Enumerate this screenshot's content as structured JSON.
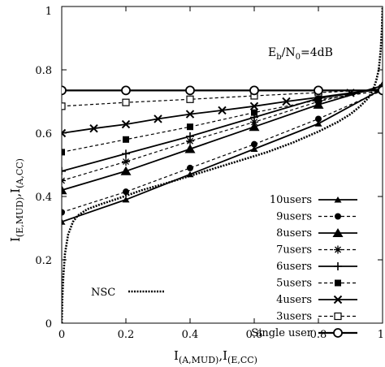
{
  "chart_data": {
    "type": "line",
    "annotation": "E_b/N_0=4dB",
    "annotation_parts": {
      "e": "E",
      "b": "b",
      "slash": "/N",
      "zero": "0",
      "tail": "=4dB"
    },
    "xlabel_parts": {
      "i1": "I",
      "s1": "(A,MUD)",
      "mid": ",I",
      "s2": "(E,CC)"
    },
    "ylabel_parts": {
      "i1": "I",
      "s1": "(E,MUD)",
      "mid": ",I",
      "s2": "(A,CC)"
    },
    "xlim": [
      0,
      1
    ],
    "ylim": [
      0,
      1
    ],
    "x_ticks": [
      0,
      0.2,
      0.4,
      0.6,
      0.8,
      1
    ],
    "x_tick_labels": [
      "0",
      "0.2",
      "0.4",
      "0.6",
      "0.8",
      "1"
    ],
    "y_ticks": [
      0,
      0.2,
      0.4,
      0.6,
      0.8,
      1
    ],
    "y_tick_labels": [
      "0",
      "0.2",
      "0.4",
      "0.6",
      "0.8",
      "1"
    ],
    "grid": false,
    "legend_position": "bottom-right",
    "series": [
      {
        "name": "10users",
        "style": "solid",
        "marker": "triangle-small",
        "x": [
          0,
          0.2,
          0.4,
          0.6,
          0.8,
          1
        ],
        "y": [
          0.32,
          0.39,
          0.47,
          0.55,
          0.63,
          0.74
        ]
      },
      {
        "name": "9users",
        "style": "dashed",
        "marker": "circle-filled",
        "x": [
          0,
          0.2,
          0.4,
          0.6,
          0.8,
          1
        ],
        "y": [
          0.35,
          0.415,
          0.49,
          0.565,
          0.645,
          0.735
        ]
      },
      {
        "name": "8users",
        "style": "solid",
        "marker": "triangle-large",
        "x": [
          0,
          0.2,
          0.4,
          0.6,
          0.8,
          1
        ],
        "y": [
          0.42,
          0.48,
          0.55,
          0.62,
          0.69,
          0.75
        ]
      },
      {
        "name": "7users",
        "style": "dashed",
        "marker": "star",
        "x": [
          0,
          0.2,
          0.4,
          0.6,
          0.8,
          1
        ],
        "y": [
          0.45,
          0.51,
          0.575,
          0.635,
          0.7,
          0.745
        ]
      },
      {
        "name": "6users",
        "style": "solid",
        "marker": "plus",
        "x": [
          0,
          0.2,
          0.4,
          0.6,
          0.8,
          1
        ],
        "y": [
          0.48,
          0.535,
          0.59,
          0.65,
          0.71,
          0.74
        ]
      },
      {
        "name": "5users",
        "style": "dashed",
        "marker": "square-filled",
        "x": [
          0,
          0.2,
          0.4,
          0.6,
          0.8,
          1
        ],
        "y": [
          0.54,
          0.58,
          0.62,
          0.665,
          0.705,
          0.735
        ]
      },
      {
        "name": "4users",
        "style": "solid",
        "marker": "x",
        "x": [
          0,
          0.1,
          0.2,
          0.3,
          0.4,
          0.5,
          0.6,
          0.7,
          0.8,
          0.9,
          1
        ],
        "y": [
          0.6,
          0.615,
          0.628,
          0.645,
          0.66,
          0.672,
          0.685,
          0.7,
          0.713,
          0.727,
          0.74
        ]
      },
      {
        "name": "3users",
        "style": "dashed",
        "marker": "square-open",
        "x": [
          0,
          0.2,
          0.4,
          0.6,
          0.8,
          1
        ],
        "y": [
          0.685,
          0.697,
          0.707,
          0.718,
          0.728,
          0.738
        ]
      },
      {
        "name": "Single user",
        "style": "solid-thick",
        "marker": "circle-open",
        "x": [
          0,
          0.2,
          0.4,
          0.6,
          0.8,
          1
        ],
        "y": [
          0.735,
          0.735,
          0.735,
          0.735,
          0.735,
          0.735
        ]
      }
    ],
    "nsc_curve": {
      "name": "NSC",
      "style": "dotted",
      "x": [
        0.0,
        0.002,
        0.005,
        0.01,
        0.02,
        0.035,
        0.05,
        0.08,
        0.12,
        0.18,
        0.25,
        0.32,
        0.4,
        0.48,
        0.56,
        0.64,
        0.72,
        0.8,
        0.86,
        0.9,
        0.93,
        0.955,
        0.97,
        0.98,
        0.988,
        0.994,
        0.998,
        1.0
      ],
      "y": [
        0.0,
        0.08,
        0.15,
        0.22,
        0.28,
        0.32,
        0.34,
        0.36,
        0.375,
        0.395,
        0.42,
        0.44,
        0.465,
        0.49,
        0.515,
        0.54,
        0.57,
        0.605,
        0.635,
        0.66,
        0.685,
        0.71,
        0.735,
        0.765,
        0.8,
        0.86,
        0.93,
        1.0
      ]
    }
  }
}
